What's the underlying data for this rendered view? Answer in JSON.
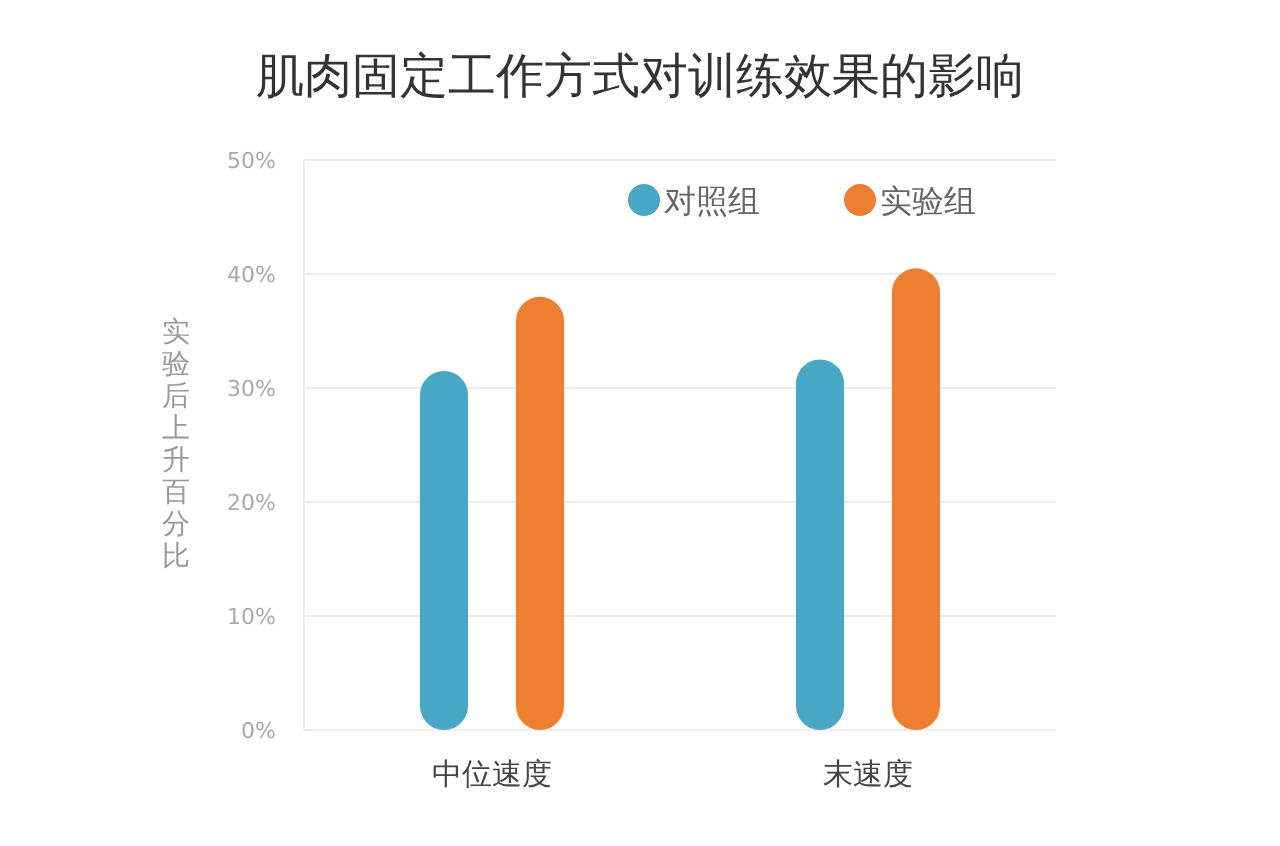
{
  "chart_data": {
    "type": "bar",
    "title": "肌肉固定工作方式对训练效果的影响",
    "ylabel": "实验后上升百分比",
    "categories": [
      "中位速度",
      "末速度"
    ],
    "series": [
      {
        "name": "对照组",
        "color": "#46a8c4",
        "values": [
          31.5,
          32.5
        ]
      },
      {
        "name": "实验组",
        "color": "#ee7f30",
        "values": [
          38,
          40.5
        ]
      }
    ],
    "ylim": [
      0,
      50
    ],
    "yticks": [
      {
        "value": 0,
        "label": "0%"
      },
      {
        "value": 10,
        "label": "10%"
      },
      {
        "value": 20,
        "label": "20%"
      },
      {
        "value": 30,
        "label": "30%"
      },
      {
        "value": 40,
        "label": "40%"
      },
      {
        "value": 50,
        "label": "50%"
      }
    ],
    "grid": "y",
    "legend": "top right"
  }
}
